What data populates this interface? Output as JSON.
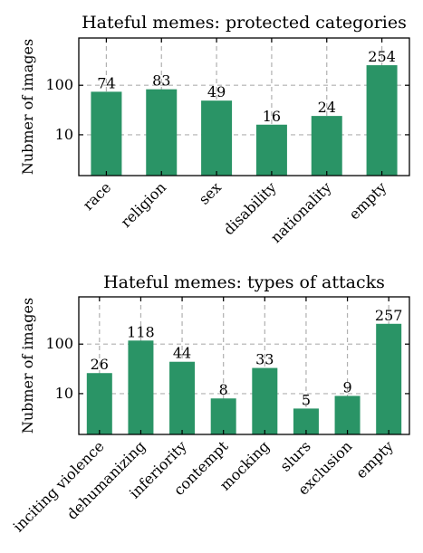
{
  "chart_data": [
    {
      "type": "bar",
      "title": "Hateful memes: protected categories",
      "xlabel": "",
      "ylabel": "Nubmer of images",
      "yscale": "log",
      "ylim": [
        1.5,
        900
      ],
      "yticks": [
        10,
        100
      ],
      "ytick_labels": [
        "10",
        "100"
      ],
      "grid": true,
      "color": "#2a9466",
      "categories": [
        "race",
        "religion",
        "sex",
        "disability",
        "nationality",
        "empty"
      ],
      "values": [
        74,
        83,
        49,
        16,
        24,
        254
      ]
    },
    {
      "type": "bar",
      "title": "Hateful memes: types of attacks",
      "xlabel": "",
      "ylabel": "Nubmer of images",
      "yscale": "log",
      "ylim": [
        1.5,
        900
      ],
      "yticks": [
        10,
        100
      ],
      "ytick_labels": [
        "10",
        "100"
      ],
      "grid": true,
      "color": "#2a9466",
      "categories": [
        "inciting violence",
        "dehumanizing",
        "inferiority",
        "contempt",
        "mocking",
        "slurs",
        "exclusion",
        "empty"
      ],
      "values": [
        26,
        118,
        44,
        8,
        33,
        5,
        9,
        257
      ]
    }
  ]
}
